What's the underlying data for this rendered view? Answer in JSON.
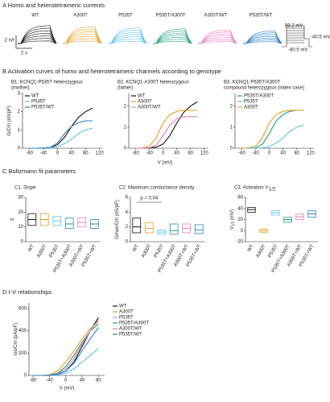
{
  "panel_a": {
    "title": "A Homo and heterotetrameric currents",
    "labels": [
      "WT",
      "A300T",
      "P535T",
      "P535T/A300T",
      "A300T/WT",
      "P535T/WT"
    ],
    "colors": [
      "#111111",
      "#e8a020",
      "#5cc4e6",
      "#1f9e7e",
      "#e27fbf",
      "#2a7fc0"
    ],
    "scale_y": "2 nA",
    "scale_x": "2 s",
    "protocol": [
      "99.2 mV",
      "-40.5 mV",
      "-80.5 mV"
    ]
  },
  "panel_b": {
    "title": "B Activation curves of homo and heterotetrameric channels according to genotype",
    "x_label": "V (mV)"
  },
  "panel_c": {
    "title": "C Boltzmann fit parameters"
  },
  "chart_data": [
    {
      "type": "line",
      "title": "B1. KCNQ1-P535T heterozygous",
      "subtitle": "(mother)",
      "y_label": "G/Cm (nS/pF)",
      "x": [
        -80,
        -60,
        -40,
        -20,
        0,
        20,
        40,
        60,
        80,
        100
      ],
      "xlim": [
        -100,
        130
      ],
      "xticks": [
        -80,
        -40,
        0,
        40,
        80,
        120
      ],
      "ylim": [
        0,
        3
      ],
      "yticks": [
        0,
        1,
        2,
        3
      ],
      "legend": "upper left",
      "series": [
        {
          "name": "WT",
          "color": "#111111",
          "values": [
            0,
            0,
            0.01,
            0.05,
            0.2,
            0.6,
            1.2,
            1.7,
            2.0,
            2.2
          ]
        },
        {
          "name": "P535T",
          "color": "#5cc4e6",
          "values": [
            0,
            0,
            0,
            0.02,
            0.08,
            0.25,
            0.5,
            0.8,
            1.0,
            1.1
          ]
        },
        {
          "name": "P535T/WT",
          "color": "#2a7fc0",
          "values": [
            0,
            0,
            0.01,
            0.05,
            0.3,
            0.8,
            1.2,
            1.4,
            1.5,
            1.5
          ]
        }
      ]
    },
    {
      "type": "line",
      "title": "B2. KCNQ1-A300T heterozygous",
      "subtitle": "(father)",
      "x": [
        -80,
        -60,
        -40,
        -20,
        0,
        20,
        40,
        60,
        80,
        100
      ],
      "xlim": [
        -100,
        130
      ],
      "xticks": [
        -80,
        -40,
        0,
        40,
        80,
        120
      ],
      "ylim": [
        0,
        2.6
      ],
      "yticks": [
        0,
        1,
        2
      ],
      "legend": "upper left",
      "series": [
        {
          "name": "WT",
          "color": "#111111",
          "values": [
            0,
            0,
            0.01,
            0.05,
            0.2,
            0.6,
            1.2,
            1.7,
            2.0,
            2.2
          ]
        },
        {
          "name": "A300T",
          "color": "#e8a020",
          "values": [
            0,
            0.02,
            0.1,
            0.5,
            1.2,
            1.6,
            1.75,
            1.8,
            1.8,
            1.8
          ]
        },
        {
          "name": "A300T/WT",
          "color": "#e27fbf",
          "values": [
            0,
            0,
            0.02,
            0.15,
            0.6,
            1.1,
            1.4,
            1.5,
            1.5,
            1.5
          ]
        }
      ]
    },
    {
      "type": "line",
      "title": "B3. KCNQ1-P535T/A300T",
      "subtitle": "compound heterozygous (index case)",
      "x": [
        -80,
        -60,
        -40,
        -20,
        0,
        20,
        40,
        60,
        80,
        100
      ],
      "xlim": [
        -100,
        130
      ],
      "xticks": [
        -80,
        -40,
        0,
        40,
        80,
        120
      ],
      "ylim": [
        0,
        2.6
      ],
      "yticks": [
        0,
        1,
        2
      ],
      "legend": "upper left",
      "series": [
        {
          "name": "P535T/A300T",
          "color": "#1f9e7e",
          "values": [
            0,
            0,
            0.02,
            0.2,
            0.7,
            1.3,
            1.6,
            1.75,
            1.8,
            1.8
          ]
        },
        {
          "name": "P535T",
          "color": "#5cc4e6",
          "values": [
            0,
            0,
            0,
            0.02,
            0.08,
            0.25,
            0.5,
            0.8,
            1.0,
            1.1
          ]
        },
        {
          "name": "A300T",
          "color": "#e8a020",
          "values": [
            0,
            0.02,
            0.1,
            0.5,
            1.2,
            1.6,
            1.75,
            1.8,
            1.8,
            1.8
          ]
        }
      ]
    },
    {
      "type": "box",
      "title": "C1. Slope",
      "y_label": "S",
      "categories": [
        "WT",
        "A300T",
        "P535T",
        "P535T+A300T",
        "A300T+WT",
        "P535T+WT"
      ],
      "colors": [
        "#111111",
        "#e8a020",
        "#5cc4e6",
        "#1f9e7e",
        "#e27fbf",
        "#2a7fc0"
      ],
      "median": [
        15,
        15,
        14,
        12,
        13,
        12
      ],
      "q1": [
        11,
        11,
        11,
        9,
        10,
        9
      ],
      "q3": [
        19,
        19,
        17,
        16,
        16,
        15
      ],
      "ylim": [
        0,
        30
      ],
      "yticks": [
        0,
        10,
        20,
        30
      ]
    },
    {
      "type": "box",
      "title": "C2. Maximum conductance density",
      "y_label": "Gmax/Cm (nS/pF)",
      "annotation": "p = 0.04",
      "categories": [
        "WT",
        "A300T",
        "P535T",
        "P535T+A300T",
        "A300T+WT",
        "P535T+WT"
      ],
      "colors": [
        "#111111",
        "#e8a020",
        "#5cc4e6",
        "#1f9e7e",
        "#e27fbf",
        "#2a7fc0"
      ],
      "median": [
        2.0,
        1.8,
        1.3,
        1.5,
        1.8,
        1.6
      ],
      "q1": [
        1.2,
        1.2,
        1.0,
        1.0,
        1.2,
        1.1
      ],
      "q3": [
        3.2,
        2.6,
        1.6,
        2.4,
        2.4,
        2.3
      ],
      "ylim": [
        0,
        6
      ],
      "yticks": [
        0,
        2,
        4,
        6
      ]
    },
    {
      "type": "box",
      "title": "C3. Activation V",
      "title_sub": "1/2",
      "y_label": "V",
      "y_label_sub": "1/2",
      "y_label_unit": " (mV)",
      "categories": [
        "WT",
        "A300T",
        "P535T",
        "P535T+A300T",
        "A300T+WT",
        "P535T+WT"
      ],
      "colors": [
        "#111111",
        "#e8a020",
        "#5cc4e6",
        "#1f9e7e",
        "#e27fbf",
        "#2a7fc0"
      ],
      "median": [
        38,
        0,
        32,
        20,
        25,
        30
      ],
      "q1": [
        33,
        -3,
        28,
        15,
        20,
        24
      ],
      "q3": [
        42,
        3,
        36,
        24,
        30,
        36
      ],
      "ylim": [
        -20,
        60
      ],
      "yticks": [
        -20,
        0,
        20,
        40,
        60
      ]
    },
    {
      "type": "line",
      "title": "D I-V relationships",
      "y_label": "Iss/Cm (pA/pF)",
      "x_label": "V (mV)",
      "x": [
        -80,
        -60,
        -40,
        -20,
        0,
        20,
        40,
        60,
        80
      ],
      "xlim": [
        -90,
        95
      ],
      "xticks": [
        -80,
        -40,
        0,
        40,
        80
      ],
      "ylim": [
        0,
        650
      ],
      "yticks": [
        0,
        200,
        400,
        600
      ],
      "legend": "outside right",
      "series": [
        {
          "name": "WT",
          "color": "#111111",
          "values": [
            0,
            0,
            0,
            10,
            40,
            120,
            260,
            400,
            520
          ]
        },
        {
          "name": "A300T",
          "color": "#e8a020",
          "values": [
            0,
            0,
            5,
            40,
            120,
            220,
            330,
            420,
            480
          ]
        },
        {
          "name": "P535T",
          "color": "#5cc4e6",
          "values": [
            0,
            0,
            0,
            5,
            20,
            60,
            120,
            180,
            240
          ]
        },
        {
          "name": "P535T/A300T",
          "color": "#1f9e7e",
          "values": [
            0,
            0,
            2,
            20,
            80,
            180,
            300,
            400,
            460
          ]
        },
        {
          "name": "A300T/WT",
          "color": "#e27fbf",
          "values": [
            0,
            0,
            0,
            15,
            60,
            150,
            280,
            400,
            500
          ]
        },
        {
          "name": "P535T/WT",
          "color": "#2a7fc0",
          "values": [
            0,
            0,
            0,
            10,
            40,
            110,
            220,
            330,
            430
          ]
        }
      ]
    }
  ]
}
